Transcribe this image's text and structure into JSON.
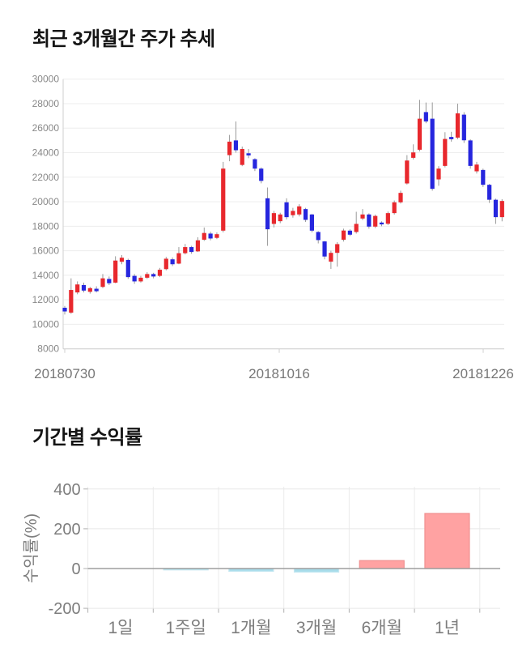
{
  "page": {
    "background": "#ffffff"
  },
  "chart_data": [
    {
      "type": "candlestick",
      "title": "최근 3개월간 주가 추세",
      "ylabel": "",
      "xlabel": "",
      "ylim": [
        8000,
        30000
      ],
      "y_ticks": [
        30000,
        28000,
        26000,
        24000,
        22000,
        20000,
        18000,
        16000,
        14000,
        12000,
        10000,
        8000
      ],
      "x_tick_labels": [
        "20180730",
        "20181016",
        "20181226"
      ],
      "x_tick_x": [
        80,
        345,
        597
      ],
      "grid": true,
      "up_color": "#e8282d",
      "down_color": "#2626de",
      "wick_color": "#999999",
      "grid_color": "#ededed",
      "axis_color": "#cfcfcf",
      "tick_text_color": "#888888",
      "date_text_color": "#777777",
      "ohlc": [
        [
          11350,
          11500,
          10800,
          11050
        ],
        [
          10950,
          13750,
          10850,
          12800
        ],
        [
          12600,
          13500,
          12450,
          13250
        ],
        [
          13200,
          13400,
          12600,
          12750
        ],
        [
          12650,
          13050,
          12500,
          12950
        ],
        [
          12900,
          13100,
          12600,
          12700
        ],
        [
          13050,
          14100,
          12950,
          13750
        ],
        [
          13700,
          13900,
          13200,
          13350
        ],
        [
          13400,
          15550,
          13350,
          15200
        ],
        [
          15100,
          15650,
          14900,
          15430
        ],
        [
          15250,
          15350,
          13700,
          13850
        ],
        [
          13950,
          14100,
          13300,
          13500
        ],
        [
          13500,
          13950,
          13400,
          13800
        ],
        [
          13800,
          14250,
          13700,
          14100
        ],
        [
          14100,
          14200,
          13750,
          13900
        ],
        [
          13950,
          14600,
          13850,
          14450
        ],
        [
          14500,
          15500,
          14400,
          15350
        ],
        [
          15300,
          15450,
          14750,
          14900
        ],
        [
          14950,
          16300,
          14900,
          15800
        ],
        [
          15800,
          16550,
          15700,
          16300
        ],
        [
          16300,
          16400,
          15750,
          15900
        ],
        [
          15950,
          17100,
          15900,
          16850
        ],
        [
          16900,
          17900,
          16800,
          17450
        ],
        [
          17400,
          17550,
          16850,
          17000
        ],
        [
          17050,
          17500,
          16950,
          17350
        ],
        [
          17640,
          23250,
          17500,
          22700
        ],
        [
          23800,
          25450,
          23300,
          24900
        ],
        [
          25000,
          26550,
          24000,
          24200
        ],
        [
          23000,
          24500,
          22900,
          24300
        ],
        [
          23950,
          24300,
          23550,
          23780
        ],
        [
          23470,
          23550,
          22500,
          22700
        ],
        [
          22700,
          22800,
          21500,
          21700
        ],
        [
          20280,
          21160,
          16400,
          17750
        ],
        [
          18190,
          19250,
          17900,
          19070
        ],
        [
          18410,
          19100,
          18250,
          18960
        ],
        [
          19950,
          20280,
          18550,
          18740
        ],
        [
          18900,
          19500,
          18700,
          19250
        ],
        [
          18960,
          19800,
          18800,
          19620
        ],
        [
          19400,
          19500,
          18350,
          18520
        ],
        [
          18960,
          19000,
          17500,
          17640
        ],
        [
          17530,
          17600,
          16600,
          16870
        ],
        [
          16760,
          16800,
          15300,
          15530
        ],
        [
          15110,
          16000,
          14520,
          15830
        ],
        [
          15830,
          16700,
          14700,
          16540
        ],
        [
          16900,
          17800,
          16750,
          17650
        ],
        [
          17640,
          17750,
          17200,
          17310
        ],
        [
          17530,
          19180,
          17400,
          18190
        ],
        [
          18630,
          19400,
          18500,
          18960
        ],
        [
          18960,
          19050,
          17800,
          17970
        ],
        [
          17970,
          18950,
          17850,
          18840
        ],
        [
          18300,
          18400,
          18000,
          18150
        ],
        [
          18200,
          19200,
          18100,
          19070
        ],
        [
          19070,
          20100,
          18950,
          19950
        ],
        [
          19950,
          20900,
          19850,
          20720
        ],
        [
          21490,
          23800,
          21400,
          23360
        ],
        [
          23580,
          24680,
          23450,
          24020
        ],
        [
          24240,
          28310,
          24100,
          26770
        ],
        [
          27310,
          28090,
          26400,
          26550
        ],
        [
          26770,
          28100,
          20900,
          21050
        ],
        [
          21820,
          22900,
          21300,
          22700
        ],
        [
          22920,
          25670,
          22800,
          25120
        ],
        [
          25280,
          25700,
          24900,
          25100
        ],
        [
          25230,
          28000,
          25100,
          27210
        ],
        [
          27100,
          27300,
          24800,
          25010
        ],
        [
          25000,
          25100,
          22700,
          22920
        ],
        [
          22480,
          23250,
          22300,
          23030
        ],
        [
          22590,
          22700,
          21200,
          21380
        ],
        [
          21380,
          21450,
          19900,
          20160
        ],
        [
          20160,
          20250,
          18190,
          18740
        ],
        [
          18740,
          20200,
          18400,
          20060
        ]
      ]
    },
    {
      "type": "bar",
      "title": "기간별 수익률",
      "ylabel": "수익률(%)",
      "xlabel": "",
      "ylim": [
        -200,
        400
      ],
      "y_ticks": [
        400,
        200,
        0,
        -200
      ],
      "categories": [
        "1일",
        "1주일",
        "1개월",
        "3개월",
        "6개월",
        "1년"
      ],
      "values": [
        0,
        -7,
        -14,
        -18,
        40,
        277
      ],
      "grid": true,
      "legend": false,
      "pos_color": "#ffa2a2",
      "pos_edge_color": "#f09090",
      "neg_color": "#a7dcea",
      "neg_edge_color": "#c4e7f1",
      "grid_color": "#e8e8e8",
      "zero_line_color": "#9e9e9e",
      "text_color": "#7d7d7d"
    }
  ]
}
